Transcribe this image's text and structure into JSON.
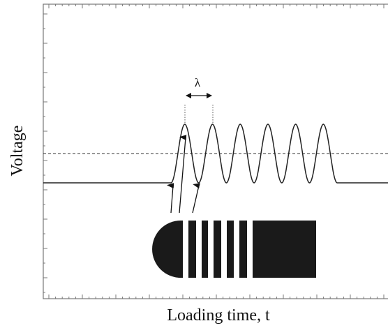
{
  "y_axis_label": "Voltage",
  "x_axis_label": "Loading time, t",
  "annotation": "λ"
}
